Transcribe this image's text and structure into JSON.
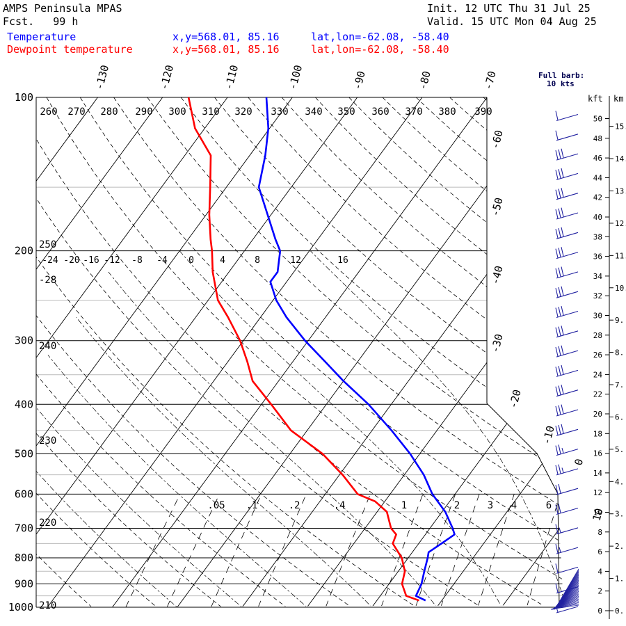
{
  "header": {
    "title": "AMPS Peninsula MPAS",
    "fcst": "Fcst.   99 h",
    "init": "Init. 12 UTC Thu 31 Jul 25",
    "valid": "Valid. 15 UTC Mon 04 Aug 25",
    "temp_label": "Temperature",
    "temp_xy": "x,y=568.01, 85.16",
    "temp_latlon": "lat,lon=-62.08, -58.40",
    "dew_label": "Dewpoint temperature",
    "dew_xy": "x,y=568.01, 85.16",
    "dew_latlon": "lat,lon=-62.08, -58.40"
  },
  "barb_legend": {
    "line1": "Full barb:",
    "line2": "10 kts"
  },
  "height_axis": {
    "kft_label": "kft",
    "km_label": "km",
    "kft_ticks": [
      "50",
      "48",
      "46",
      "44",
      "42",
      "40",
      "38",
      "36",
      "34",
      "32",
      "30",
      "28",
      "26",
      "24",
      "22",
      "20",
      "18",
      "16",
      "14",
      "12",
      "10",
      "8",
      "6",
      "4",
      "2",
      "0"
    ],
    "km_ticks": [
      "15.",
      "14.",
      "13.",
      "12.",
      "11.",
      "10.",
      "9.",
      "8.",
      "7.",
      "6.",
      "5.",
      "4.",
      "3.",
      "2.",
      "1.",
      "0."
    ]
  },
  "colors": {
    "temperature": "#0000ff",
    "dewpoint": "#ff0000",
    "header_temp": "#0000ff",
    "header_dew": "#ff0000",
    "grid": "#000000"
  },
  "chart_data": {
    "type": "line",
    "chart_kind": "skew-T log-p diagram",
    "y_axis": {
      "label": "pressure (hPa)",
      "scale": "log",
      "range": [
        1000,
        100
      ],
      "ticks": [
        "100",
        "200",
        "300",
        "400",
        "500",
        "600",
        "700",
        "800",
        "900",
        "1000"
      ]
    },
    "isotherm_labels_top": [
      "-130",
      "-120",
      "-110",
      "-100",
      "-90",
      "-80",
      "-70"
    ],
    "isotherm_labels_right": [
      "-60",
      "-50",
      "-40",
      "-30",
      "-20",
      "-10",
      "0",
      "10"
    ],
    "theta_labels": [
      "260",
      "270",
      "280",
      "290",
      "300",
      "310",
      "320",
      "330",
      "340",
      "350",
      "360",
      "370",
      "380",
      "390"
    ],
    "mixing_ratio_labels_200": [
      "-24",
      "-20",
      "-16",
      "-12",
      "-8",
      "-4",
      "0",
      "4",
      "8",
      "12",
      "16"
    ],
    "mixing_ratio_labels_650": [
      ".05",
      ".1",
      ".2",
      ".4",
      "1",
      "2",
      "3",
      "4",
      "6"
    ],
    "theta_left_labels": [
      "250",
      "-28",
      "240",
      "230",
      "220",
      "210"
    ],
    "grid": true,
    "series": [
      {
        "name": "Temperature",
        "pressure": [
          100,
          115,
          130,
          150,
          170,
          190,
          200,
          220,
          230,
          250,
          270,
          300,
          330,
          360,
          400,
          450,
          500,
          550,
          600,
          650,
          700,
          720,
          750,
          780,
          800,
          850,
          900,
          950,
          970
        ],
        "values": [
          -84.0,
          -80.2,
          -77.6,
          -75.0,
          -70.5,
          -66.5,
          -64.5,
          -62.5,
          -62.5,
          -59.5,
          -56.0,
          -50.5,
          -45.0,
          -40.0,
          -33.5,
          -27.0,
          -21.5,
          -17.0,
          -13.5,
          -9.5,
          -6.5,
          -5.5,
          -6.5,
          -7.5,
          -7.0,
          -6.0,
          -5.0,
          -4.5,
          -2.5
        ]
      },
      {
        "name": "Dewpoint temperature",
        "pressure": [
          100,
          115,
          130,
          150,
          170,
          190,
          200,
          220,
          250,
          270,
          300,
          330,
          360,
          400,
          450,
          500,
          550,
          600,
          620,
          650,
          700,
          720,
          750,
          800,
          850,
          900,
          950,
          970
        ],
        "values": [
          -96.0,
          -91.5,
          -86.0,
          -82.5,
          -79.5,
          -76.5,
          -75.0,
          -72.5,
          -68.5,
          -65.0,
          -60.5,
          -57.0,
          -54.0,
          -48.5,
          -42.5,
          -35.0,
          -29.5,
          -25.0,
          -21.5,
          -18.5,
          -16.0,
          -14.5,
          -14.0,
          -11.0,
          -9.0,
          -8.0,
          -6.0,
          -3.5
        ]
      }
    ],
    "wind_barbs": {
      "heights_kft": [
        50,
        48,
        46,
        44,
        42,
        40,
        38,
        36,
        34,
        32,
        30,
        28,
        26,
        24,
        22,
        20,
        18,
        16,
        14,
        12,
        10,
        8,
        6,
        4,
        2,
        0
      ],
      "speeds_kt": [
        10,
        10,
        30,
        30,
        30,
        30,
        30,
        30,
        30,
        30,
        30,
        30,
        30,
        30,
        30,
        30,
        30,
        25,
        25,
        20,
        20,
        15,
        15,
        10,
        10,
        5
      ]
    }
  }
}
